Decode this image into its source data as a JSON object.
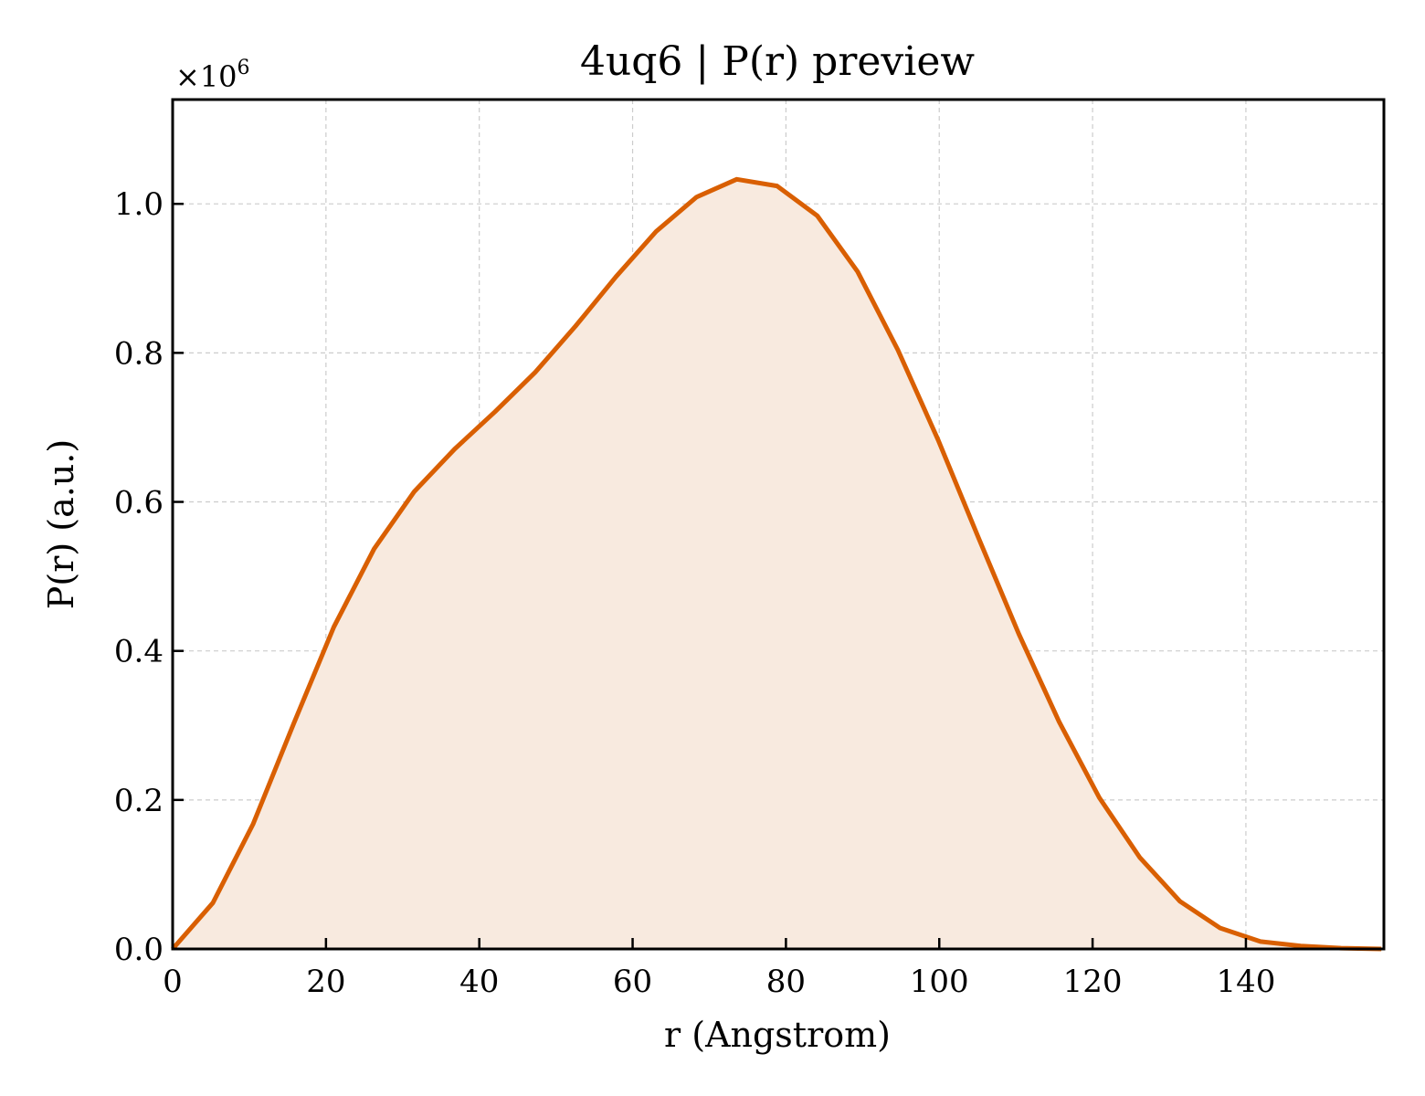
{
  "chart_data": {
    "type": "area",
    "title": "4uq6 | P(r) preview",
    "xlabel": "r (Angstrom)",
    "ylabel": "P(r) (a.u.)",
    "y_offset_label": {
      "base": "×10",
      "exponent": "6"
    },
    "xlim": [
      0,
      158
    ],
    "ylim": [
      0,
      1.14
    ],
    "xticks": [
      0,
      20,
      40,
      60,
      80,
      100,
      120,
      140
    ],
    "yticks": [
      0.0,
      0.2,
      0.4,
      0.6,
      0.8,
      1.0
    ],
    "xtick_labels": [
      "0",
      "20",
      "40",
      "60",
      "80",
      "100",
      "120",
      "140"
    ],
    "ytick_labels": [
      "0.0",
      "0.2",
      "0.4",
      "0.6",
      "0.8",
      "1.0"
    ],
    "grid": true,
    "line_color": "#d95f02",
    "fill_color": "#f8eadf",
    "x": [
      0,
      5.26,
      10.51,
      15.77,
      21.02,
      26.28,
      31.53,
      36.79,
      42.05,
      47.3,
      52.56,
      57.81,
      63.07,
      68.32,
      73.58,
      78.84,
      84.09,
      89.35,
      94.6,
      99.86,
      105.11,
      110.37,
      115.63,
      120.88,
      126.14,
      131.39,
      136.65,
      141.9,
      147.16,
      152.42,
      157.67
    ],
    "y": [
      0.0,
      0.062,
      0.168,
      0.302,
      0.432,
      0.537,
      0.614,
      0.671,
      0.721,
      0.774,
      0.836,
      0.902,
      0.963,
      1.009,
      1.033,
      1.024,
      0.984,
      0.909,
      0.804,
      0.683,
      0.552,
      0.423,
      0.305,
      0.203,
      0.123,
      0.064,
      0.028,
      0.01,
      0.004,
      0.001,
      0.0
    ]
  }
}
